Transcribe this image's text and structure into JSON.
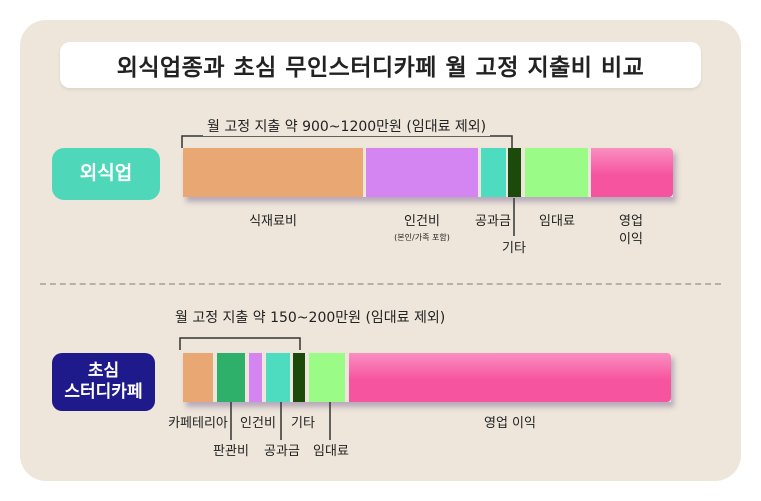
{
  "title": "외식업종과 초심 무인스터디카페 월 고정 지출비 비교",
  "restaurant": {
    "label": "외식업",
    "bracket_note": "월 고정 지출 약 900~1200만원 (임대료 제외)",
    "segments": [
      {
        "name": "식재료비",
        "color": "#e8a773"
      },
      {
        "name": "인건비",
        "sub": "(본인/가족 포함)",
        "color": "#d585f2"
      },
      {
        "name": "공과금",
        "color": "#4ddcc0"
      },
      {
        "name": "기타",
        "color": "#1c4a0a"
      },
      {
        "name": "임대료",
        "color": "#9afc86"
      },
      {
        "name": "영업\n이익",
        "color": "#f7549f"
      }
    ]
  },
  "studycafe": {
    "label_line1": "초심",
    "label_line2": "스터디카페",
    "bracket_note": "월 고정 지출 약 150~200만원 (임대료 제외)",
    "segments": [
      {
        "name": "카페테리아",
        "color": "#e8a773"
      },
      {
        "name": "판관비",
        "color": "#2fb06a"
      },
      {
        "name": "인건비",
        "color": "#d585f2"
      },
      {
        "name": "공과금",
        "color": "#4ddcc0"
      },
      {
        "name": "기타",
        "color": "#1c4a0a"
      },
      {
        "name": "임대료",
        "color": "#9afc86"
      },
      {
        "name": "영업 이익",
        "color": "#f7549f"
      }
    ]
  }
}
